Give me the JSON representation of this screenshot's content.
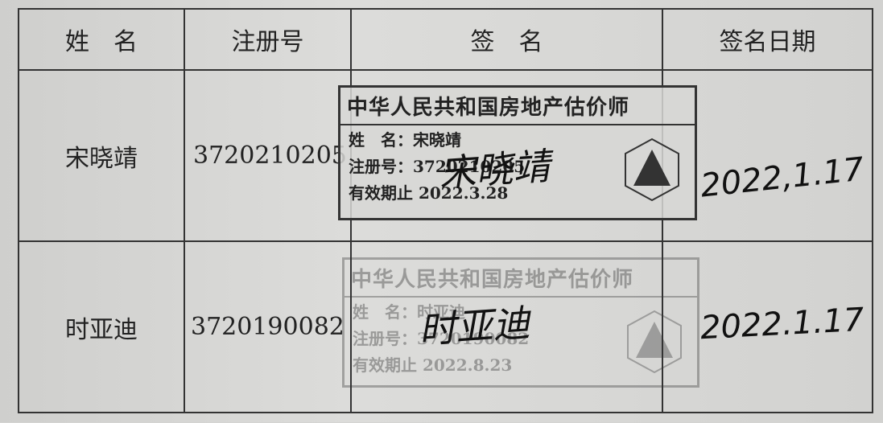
{
  "table": {
    "header": [
      "姓　名",
      "注册号",
      "签　名",
      "签名日期"
    ],
    "rows": [
      {
        "name": "宋晓靖",
        "reg_no": "3720210205",
        "signature": "宋晓靖",
        "date": "2022,1.17",
        "stamp": {
          "title": "中华人民共和国房地产估价师",
          "name_line": "姓　名：宋晓靖",
          "reg_line": "注册号：3720210205",
          "valid_line": "有效期止 2022.3.28"
        }
      },
      {
        "name": "时亚迪",
        "reg_no": "3720190082",
        "signature": "时亚迪",
        "date": "2022.1.17",
        "stamp": {
          "title": "中华人民共和国房地产估价师",
          "name_line": "姓　名：时亚迪",
          "reg_line": "注册号：3720190082",
          "valid_line": "有效期止 2022.8.23"
        }
      }
    ]
  }
}
